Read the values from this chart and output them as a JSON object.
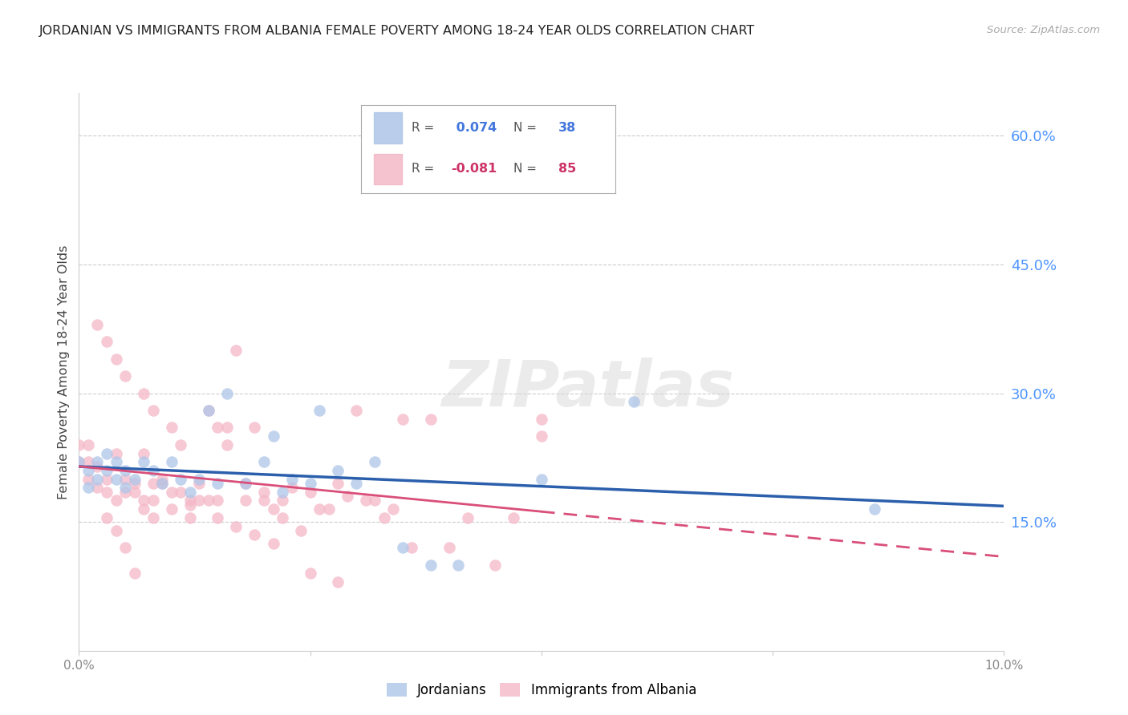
{
  "title": "JORDANIAN VS IMMIGRANTS FROM ALBANIA FEMALE POVERTY AMONG 18-24 YEAR OLDS CORRELATION CHART",
  "source": "Source: ZipAtlas.com",
  "ylabel": "Female Poverty Among 18-24 Year Olds",
  "ytick_values": [
    0.15,
    0.3,
    0.45,
    0.6
  ],
  "ytick_labels": [
    "15.0%",
    "30.0%",
    "45.0%",
    "60.0%"
  ],
  "xlim": [
    0.0,
    0.1
  ],
  "ylim": [
    0.0,
    0.65
  ],
  "blue_color": "#aec6e8",
  "pink_color": "#f4b8c8",
  "blue_line_color": "#2b5fac",
  "pink_line_color": "#d94f7a",
  "watermark_text": "ZIPatlas",
  "watermark_color": "#d8d8d8",
  "title_color": "#222222",
  "source_color": "#aaaaaa",
  "tick_color_right": "#4d94ff",
  "grid_color": "#cccccc",
  "axis_tick_color": "#888888",
  "legend1_R": " 0.074",
  "legend1_N": "38",
  "legend2_R": "-0.081",
  "legend2_N": "85",
  "jordanians_x": [
    0.0,
    0.001,
    0.001,
    0.002,
    0.002,
    0.003,
    0.003,
    0.004,
    0.004,
    0.005,
    0.005,
    0.006,
    0.007,
    0.008,
    0.009,
    0.01,
    0.011,
    0.012,
    0.013,
    0.014,
    0.015,
    0.016,
    0.018,
    0.02,
    0.021,
    0.022,
    0.023,
    0.025,
    0.026,
    0.028,
    0.03,
    0.032,
    0.035,
    0.038,
    0.041,
    0.05,
    0.06,
    0.086
  ],
  "jordanians_y": [
    0.22,
    0.21,
    0.19,
    0.22,
    0.2,
    0.23,
    0.21,
    0.22,
    0.2,
    0.19,
    0.21,
    0.2,
    0.22,
    0.21,
    0.195,
    0.22,
    0.2,
    0.185,
    0.2,
    0.28,
    0.195,
    0.3,
    0.195,
    0.22,
    0.25,
    0.185,
    0.2,
    0.195,
    0.28,
    0.21,
    0.195,
    0.22,
    0.12,
    0.1,
    0.1,
    0.2,
    0.29,
    0.165
  ],
  "albania_x": [
    0.0,
    0.0,
    0.001,
    0.001,
    0.001,
    0.002,
    0.002,
    0.002,
    0.003,
    0.003,
    0.003,
    0.004,
    0.004,
    0.004,
    0.005,
    0.005,
    0.005,
    0.006,
    0.006,
    0.007,
    0.007,
    0.007,
    0.008,
    0.008,
    0.008,
    0.009,
    0.009,
    0.01,
    0.01,
    0.011,
    0.011,
    0.012,
    0.012,
    0.013,
    0.013,
    0.014,
    0.014,
    0.015,
    0.015,
    0.016,
    0.016,
    0.017,
    0.018,
    0.018,
    0.019,
    0.02,
    0.02,
    0.021,
    0.022,
    0.022,
    0.023,
    0.024,
    0.025,
    0.026,
    0.027,
    0.028,
    0.029,
    0.03,
    0.031,
    0.032,
    0.033,
    0.034,
    0.035,
    0.036,
    0.038,
    0.04,
    0.042,
    0.045,
    0.047,
    0.05,
    0.003,
    0.004,
    0.005,
    0.006,
    0.007,
    0.008,
    0.01,
    0.012,
    0.015,
    0.017,
    0.019,
    0.021,
    0.025,
    0.028,
    0.05
  ],
  "albania_y": [
    0.22,
    0.24,
    0.2,
    0.22,
    0.24,
    0.19,
    0.215,
    0.38,
    0.2,
    0.185,
    0.36,
    0.23,
    0.175,
    0.34,
    0.2,
    0.185,
    0.32,
    0.185,
    0.195,
    0.23,
    0.175,
    0.3,
    0.175,
    0.195,
    0.28,
    0.2,
    0.195,
    0.185,
    0.26,
    0.185,
    0.24,
    0.17,
    0.175,
    0.175,
    0.195,
    0.175,
    0.28,
    0.26,
    0.175,
    0.24,
    0.26,
    0.35,
    0.195,
    0.175,
    0.26,
    0.185,
    0.175,
    0.165,
    0.175,
    0.155,
    0.19,
    0.14,
    0.185,
    0.165,
    0.165,
    0.195,
    0.18,
    0.28,
    0.175,
    0.175,
    0.155,
    0.165,
    0.27,
    0.12,
    0.27,
    0.12,
    0.155,
    0.1,
    0.155,
    0.25,
    0.155,
    0.14,
    0.12,
    0.09,
    0.165,
    0.155,
    0.165,
    0.155,
    0.155,
    0.145,
    0.135,
    0.125,
    0.09,
    0.08,
    0.27
  ]
}
